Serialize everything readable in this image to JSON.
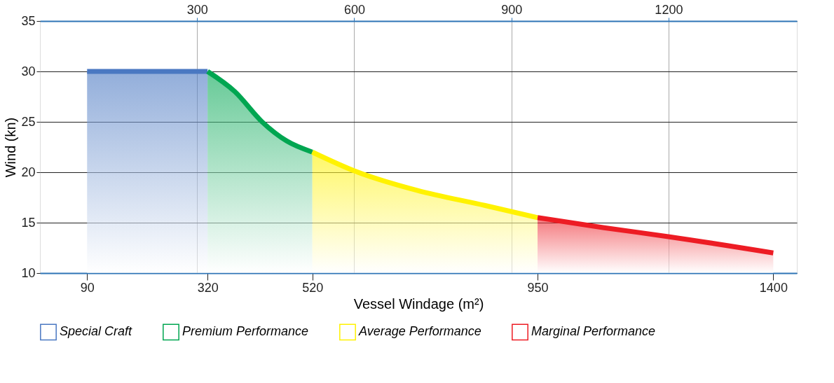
{
  "chart_data": {
    "type": "area",
    "xlabel": "Vessel Windage (m²)",
    "ylabel": "Wind (kn)",
    "xlim": [
      0,
      1445
    ],
    "xticks": [
      90,
      320,
      520,
      950,
      1400
    ],
    "x2lim": [
      0,
      1445
    ],
    "x2ticks": [
      300,
      600,
      900,
      1200
    ],
    "ylim": [
      10,
      35
    ],
    "yticks": [
      10,
      15,
      20,
      25,
      30,
      35
    ],
    "grid": true,
    "legend": "bottom",
    "series": [
      {
        "name": "Special Craft",
        "color": "#4a78c2",
        "x": [
          90,
          320
        ],
        "values": [
          30,
          30
        ]
      },
      {
        "name": "Premium Performance",
        "color": "#00a651",
        "x": [
          320,
          372,
          424,
          471,
          520
        ],
        "values": [
          30,
          28.0,
          25.0,
          23.1,
          22.0
        ]
      },
      {
        "name": "Average Performance",
        "color": "#fff200",
        "x": [
          520,
          602,
          720,
          850,
          950
        ],
        "values": [
          22.0,
          20.1,
          18.2,
          16.7,
          15.5
        ]
      },
      {
        "name": "Marginal Performance",
        "color": "#ed1c24",
        "x": [
          950,
          1077,
          1202,
          1400
        ],
        "values": [
          15.5,
          14.5,
          13.6,
          12.0
        ]
      }
    ]
  }
}
